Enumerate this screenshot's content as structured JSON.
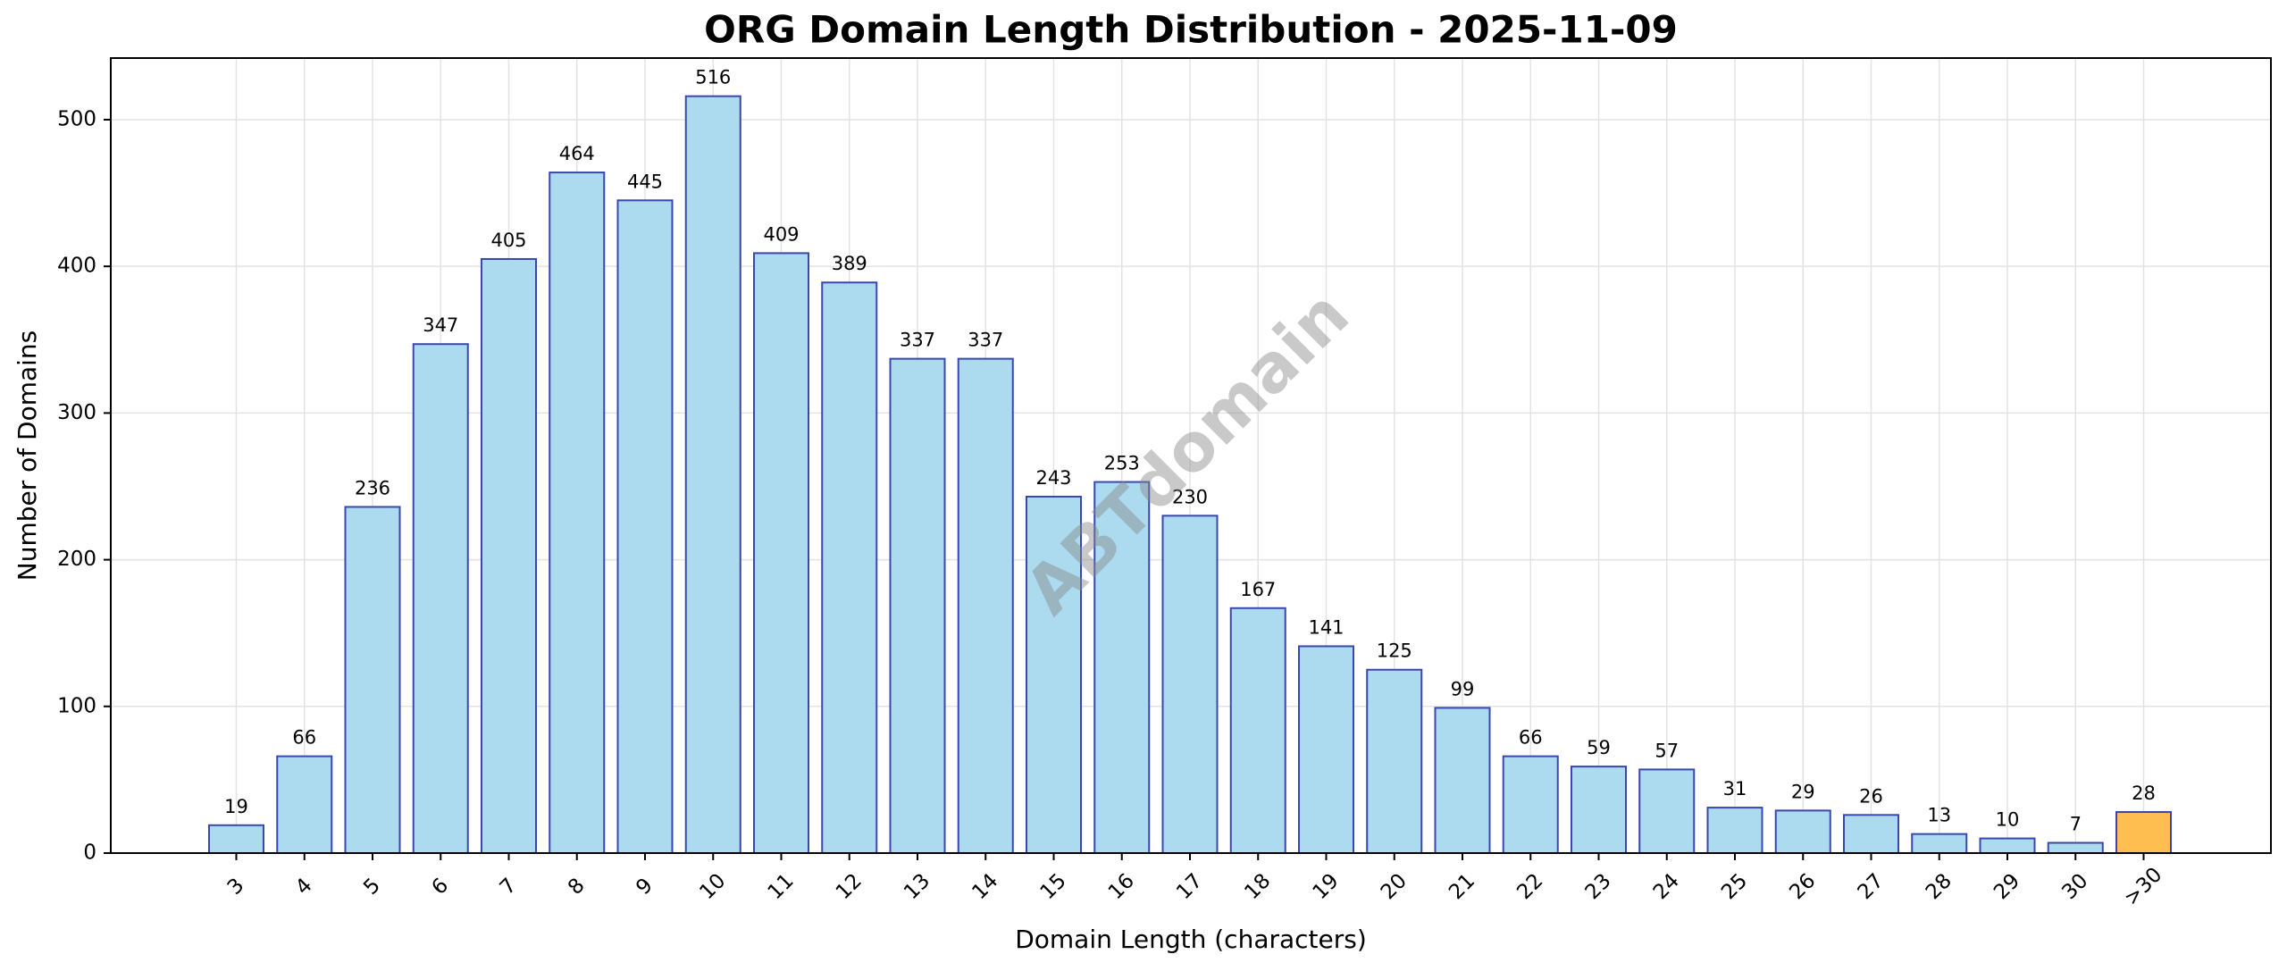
{
  "chart_data": {
    "type": "bar",
    "title": "ORG Domain Length Distribution - 2025-11-09",
    "x_label": "Domain Length (characters)",
    "y_label": "Number of Domains",
    "watermark": "ABTdomain",
    "categories": [
      "3",
      "4",
      "5",
      "6",
      "7",
      "8",
      "9",
      "10",
      "11",
      "12",
      "13",
      "14",
      "15",
      "16",
      "17",
      "18",
      "19",
      "20",
      "21",
      "22",
      "23",
      "24",
      "25",
      "26",
      "27",
      "28",
      "29",
      "30",
      ">30"
    ],
    "values": [
      19,
      66,
      236,
      347,
      405,
      464,
      445,
      516,
      409,
      389,
      337,
      337,
      243,
      253,
      230,
      167,
      141,
      125,
      99,
      66,
      59,
      57,
      31,
      29,
      26,
      13,
      10,
      7,
      28
    ],
    "colors": [
      "#acdaee",
      "#acdaee",
      "#acdaee",
      "#acdaee",
      "#acdaee",
      "#acdaee",
      "#acdaee",
      "#acdaee",
      "#acdaee",
      "#acdaee",
      "#acdaee",
      "#acdaee",
      "#acdaee",
      "#acdaee",
      "#acdaee",
      "#acdaee",
      "#acdaee",
      "#acdaee",
      "#acdaee",
      "#acdaee",
      "#acdaee",
      "#acdaee",
      "#acdaee",
      "#acdaee",
      "#acdaee",
      "#acdaee",
      "#acdaee",
      "#acdaee",
      "#ffbf50"
    ],
    "edgecolor": "#3a47b0",
    "ylim": [
      0,
      542
    ],
    "yticks": [
      0,
      100,
      200,
      300,
      400,
      500
    ],
    "grid": true
  }
}
